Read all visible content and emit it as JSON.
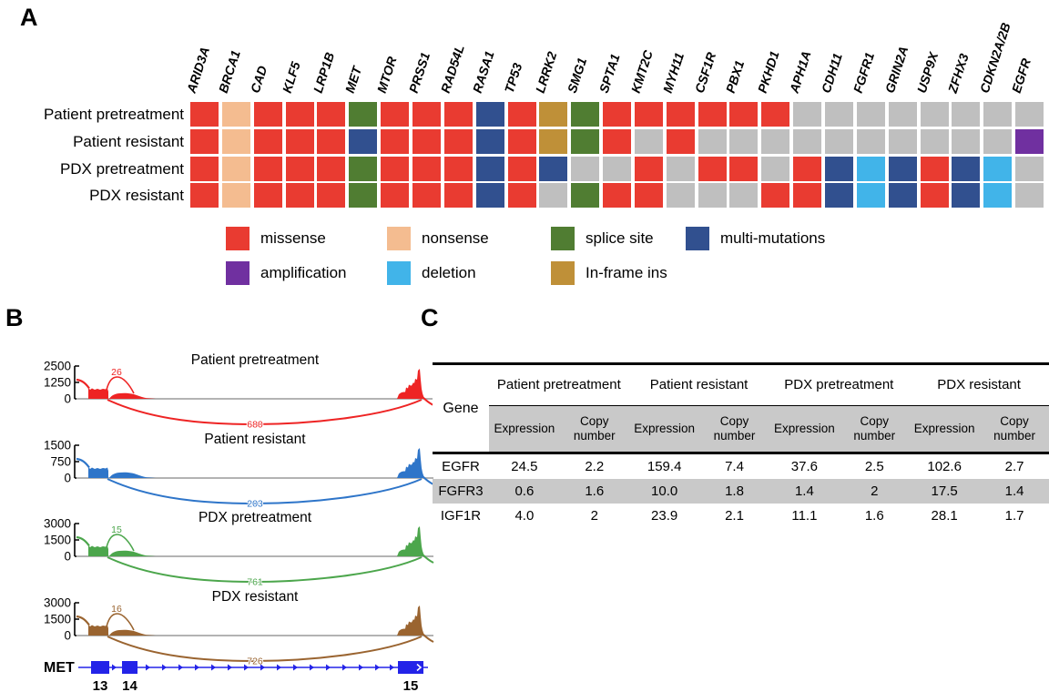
{
  "panels": {
    "a": "A",
    "b": "B",
    "c": "C"
  },
  "oncoprint": {
    "genes": [
      "ARID3A",
      "BRCA1",
      "CAD",
      "KLF5",
      "LRP1B",
      "MET",
      "MTOR",
      "PRSS1",
      "RAD54L",
      "RASA1",
      "TP53",
      "LRRK2",
      "SMG1",
      "SPTA1",
      "KMT2C",
      "MYH11",
      "CSF1R",
      "PBX1",
      "PKHD1",
      "APH1A",
      "CDH11",
      "FGFR1",
      "GRIN2A",
      "USP9X",
      "ZFHX3",
      "CDKN2A/2B",
      "EGFR"
    ],
    "colors": {
      "missense": "#e93b31",
      "nonsense": "#f4bc90",
      "splice site": "#507d32",
      "multi-mutations": "#31508f",
      "amplification": "#7030a0",
      "deletion": "#41b4e9",
      "In-frame ins": "#bf9038",
      "none": "#bfbfbf"
    },
    "rows": [
      {
        "label": "Patient pretreatment",
        "cells": [
          "missense",
          "nonsense",
          "missense",
          "missense",
          "missense",
          "splice site",
          "missense",
          "missense",
          "missense",
          "multi-mutations",
          "missense",
          "In-frame ins",
          "splice site",
          "missense",
          "missense",
          "missense",
          "missense",
          "missense",
          "missense",
          "none",
          "none",
          "none",
          "none",
          "none",
          "none",
          "none",
          "none"
        ]
      },
      {
        "label": "Patient resistant",
        "cells": [
          "missense",
          "nonsense",
          "missense",
          "missense",
          "missense",
          "multi-mutations",
          "missense",
          "missense",
          "missense",
          "multi-mutations",
          "missense",
          "In-frame ins",
          "splice site",
          "missense",
          "none",
          "missense",
          "none",
          "none",
          "none",
          "none",
          "none",
          "none",
          "none",
          "none",
          "none",
          "none",
          "amplification"
        ]
      },
      {
        "label": "PDX pretreatment",
        "cells": [
          "missense",
          "nonsense",
          "missense",
          "missense",
          "missense",
          "splice site",
          "missense",
          "missense",
          "missense",
          "multi-mutations",
          "missense",
          "multi-mutations",
          "none",
          "none",
          "missense",
          "none",
          "missense",
          "missense",
          "none",
          "missense",
          "multi-mutations",
          "deletion",
          "multi-mutations",
          "missense",
          "multi-mutations",
          "deletion",
          "none"
        ]
      },
      {
        "label": "PDX resistant",
        "cells": [
          "missense",
          "nonsense",
          "missense",
          "missense",
          "missense",
          "splice site",
          "missense",
          "missense",
          "missense",
          "multi-mutations",
          "missense",
          "none",
          "splice site",
          "missense",
          "missense",
          "none",
          "none",
          "none",
          "missense",
          "missense",
          "multi-mutations",
          "deletion",
          "multi-mutations",
          "missense",
          "multi-mutations",
          "deletion",
          "none"
        ]
      }
    ],
    "legend": {
      "row1": [
        "missense",
        "nonsense",
        "splice site",
        "multi-mutations"
      ],
      "row2": [
        "amplification",
        "deletion",
        "In-frame ins"
      ]
    }
  },
  "sashimi": {
    "plots": [
      {
        "title": "Patient pretreatment",
        "color": "#ee2424",
        "yticks": [
          "2500",
          "1250",
          "0"
        ],
        "junction_top": "26",
        "junction_bottom": "680"
      },
      {
        "title": "Patient resistant",
        "color": "#2e75c9",
        "yticks": [
          "1500",
          "750",
          "0"
        ],
        "junction_top": null,
        "junction_bottom": "203"
      },
      {
        "title": "PDX pretreatment",
        "color": "#4ca64c",
        "yticks": [
          "3000",
          "1500",
          "0"
        ],
        "junction_top": "15",
        "junction_bottom": "761"
      },
      {
        "title": "PDX resistant",
        "color": "#9a6430",
        "yticks": [
          "3000",
          "1500",
          "0"
        ],
        "junction_top": "16",
        "junction_bottom": "726"
      }
    ],
    "gene_track": {
      "gene": "MET",
      "color": "#2323e8",
      "exon_labels": [
        "13",
        "14",
        "15"
      ]
    }
  },
  "table": {
    "gene_header": "Gene",
    "groups": [
      "Patient pretreatment",
      "Patient resistant",
      "PDX pretreatment",
      "PDX resistant"
    ],
    "subheaders": [
      "Expression",
      "Copy number"
    ],
    "rows": [
      {
        "gene": "EGFR",
        "values": [
          "24.5",
          "2.2",
          "159.4",
          "7.4",
          "37.6",
          "2.5",
          "102.6",
          "2.7"
        ]
      },
      {
        "gene": "FGFR3",
        "values": [
          "0.6",
          "1.6",
          "10.0",
          "1.8",
          "1.4",
          "2",
          "17.5",
          "1.4"
        ]
      },
      {
        "gene": "IGF1R",
        "values": [
          "4.0",
          "2",
          "23.9",
          "2.1",
          "11.1",
          "1.6",
          "28.1",
          "1.7"
        ]
      }
    ]
  }
}
